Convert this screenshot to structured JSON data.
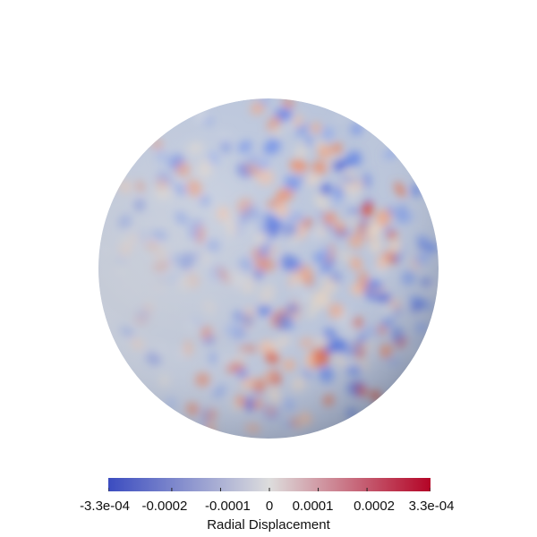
{
  "scalar_bar": {
    "title": "Radial Displacement",
    "range": [
      -0.00033,
      0.00033
    ],
    "colormap": [
      "#3b4cc0",
      "#dddddd",
      "#b40426"
    ],
    "tick_labels": [
      "-3.3e-04",
      "-0.0002",
      "-0.0001",
      "0",
      "0.0001",
      "0.0002",
      "3.3e-04"
    ],
    "tick_values": [
      -0.00033,
      -0.0002,
      -0.0001,
      0,
      0.0001,
      0.0002,
      0.00033
    ]
  },
  "render": {
    "object": "sphere",
    "background": "#ffffff"
  }
}
